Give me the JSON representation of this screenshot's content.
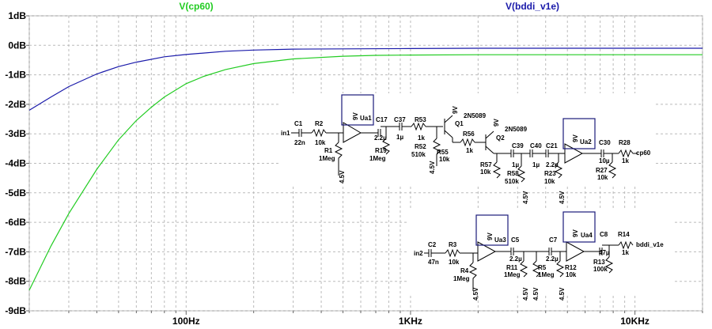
{
  "chart_data": {
    "type": "line",
    "title": "",
    "xlabel": "",
    "ylabel": "",
    "x_scale": "log",
    "xlim": [
      20,
      20000
    ],
    "ylim": [
      -9,
      1
    ],
    "grid": true,
    "y_ticks": [
      1,
      0,
      -1,
      -2,
      -3,
      -4,
      -5,
      -6,
      -7,
      -8,
      -9
    ],
    "y_tick_labels": [
      "1dB",
      "0dB",
      "-1dB",
      "-2dB",
      "-3dB",
      "-4dB",
      "-5dB",
      "-6dB",
      "-7dB",
      "-8dB",
      "-9dB"
    ],
    "x_ticks": [
      100,
      1000,
      10000
    ],
    "x_tick_labels": [
      "100Hz",
      "1KHz",
      "10KHz"
    ],
    "series": [
      {
        "name": "V(cp60)",
        "color": "#22cc22",
        "x": [
          20,
          25,
          30,
          40,
          50,
          60,
          70,
          80,
          100,
          120,
          150,
          200,
          300,
          500,
          700,
          1000,
          2000,
          5000,
          10000,
          20000
        ],
        "y": [
          -8.3,
          -6.8,
          -5.7,
          -4.2,
          -3.2,
          -2.55,
          -2.1,
          -1.75,
          -1.3,
          -1.05,
          -0.82,
          -0.62,
          -0.46,
          -0.37,
          -0.34,
          -0.33,
          -0.32,
          -0.32,
          -0.32,
          -0.32
        ]
      },
      {
        "name": "V(bddi_v1e)",
        "color": "#1a1aaa",
        "x": [
          20,
          25,
          30,
          40,
          50,
          60,
          80,
          100,
          150,
          200,
          300,
          500,
          1000,
          2000,
          5000,
          10000,
          20000
        ],
        "y": [
          -2.2,
          -1.75,
          -1.4,
          -0.97,
          -0.72,
          -0.57,
          -0.39,
          -0.31,
          -0.2,
          -0.16,
          -0.13,
          -0.12,
          -0.11,
          -0.1,
          -0.1,
          -0.1,
          -0.1
        ]
      }
    ]
  },
  "schematic": {
    "top": {
      "labels": [
        "in1",
        "C1",
        "22n",
        "R2",
        "10k",
        "R1",
        "1Meg",
        "4.5V",
        "9V",
        "Ua1",
        "C17",
        "2.2µ",
        "C37",
        "1µ",
        "R19",
        "1Meg",
        "R53",
        "1k",
        "9V",
        "Q1",
        "2N5089",
        "R52",
        "510k",
        "4.5V",
        "R55",
        "10k",
        "R56",
        "1k",
        "9V",
        "Q2",
        "2N5089",
        "R57",
        "10k",
        "C39",
        "1µ",
        "C40",
        "1µ",
        "R58",
        "510k",
        "4.5V",
        "C21",
        "2.2µ",
        "R23",
        "10k",
        "4.5V",
        "9V",
        "Ua2",
        "C30",
        "10µ",
        "R28",
        "1k",
        "cp60",
        "R27",
        "10k"
      ]
    },
    "bottom": {
      "labels": [
        "C2",
        "47n",
        "in2",
        "R3",
        "10k",
        "R4",
        "1Meg",
        "4.5V",
        "9V",
        "Ua3",
        "C5",
        "2.2µ",
        "R11",
        "1Meg",
        "4.5V",
        "R5",
        "1Meg",
        "4.5V",
        "C7",
        "2.2µ",
        "R12",
        "10k",
        "4.5V",
        "9V",
        "Ua4",
        "C8",
        "47µ",
        "R14",
        "1k",
        "bddi_v1e",
        "R13",
        "100k"
      ]
    }
  }
}
